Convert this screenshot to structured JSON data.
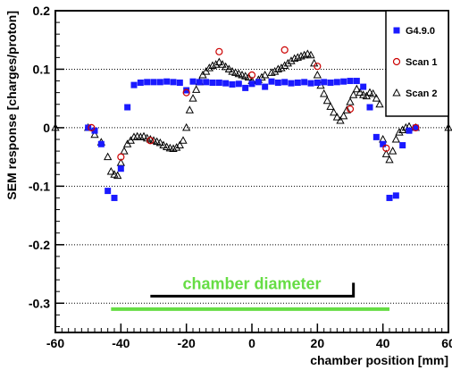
{
  "chart_data": {
    "type": "scatter",
    "xlabel": "chamber position [mm]",
    "ylabel": "SEM response [charges/proton]",
    "xlim": [
      -60,
      60
    ],
    "ylim": [
      -0.35,
      0.2
    ],
    "x_ticks": [
      -60,
      -40,
      -20,
      0,
      20,
      40,
      60
    ],
    "y_ticks": [
      -0.3,
      -0.2,
      -0.1,
      0,
      0.1,
      0.2
    ],
    "y_tick_labels": [
      "-0.3",
      "-0.2",
      "-0.1",
      "0",
      "0.1",
      "0.2"
    ],
    "grid": "dotted horizontal lines",
    "legend_position": "top-right",
    "series": [
      {
        "name": "G4.9.0",
        "marker": "filled-square",
        "color": "#1a1aff",
        "points": [
          [
            -50,
            0.0
          ],
          [
            -48,
            -0.005
          ],
          [
            -46,
            -0.028
          ],
          [
            -44,
            -0.108
          ],
          [
            -42,
            -0.12
          ],
          [
            -40,
            -0.07
          ],
          [
            -38,
            0.035
          ],
          [
            -36,
            0.073
          ],
          [
            -34,
            0.077
          ],
          [
            -32,
            0.078
          ],
          [
            -30,
            0.078
          ],
          [
            -28,
            0.078
          ],
          [
            -26,
            0.079
          ],
          [
            -24,
            0.078
          ],
          [
            -22,
            0.077
          ],
          [
            -20,
            0.064
          ],
          [
            -18,
            0.079
          ],
          [
            -16,
            0.078
          ],
          [
            -14,
            0.078
          ],
          [
            -12,
            0.077
          ],
          [
            -10,
            0.077
          ],
          [
            -8,
            0.076
          ],
          [
            -6,
            0.074
          ],
          [
            -4,
            0.075
          ],
          [
            -2,
            0.068
          ],
          [
            0,
            0.075
          ],
          [
            2,
            0.078
          ],
          [
            4,
            0.07
          ],
          [
            6,
            0.079
          ],
          [
            8,
            0.077
          ],
          [
            10,
            0.078
          ],
          [
            12,
            0.076
          ],
          [
            14,
            0.077
          ],
          [
            16,
            0.078
          ],
          [
            18,
            0.076
          ],
          [
            20,
            0.077
          ],
          [
            22,
            0.078
          ],
          [
            24,
            0.077
          ],
          [
            26,
            0.078
          ],
          [
            28,
            0.079
          ],
          [
            30,
            0.08
          ],
          [
            32,
            0.08
          ],
          [
            34,
            0.07
          ],
          [
            36,
            0.035
          ],
          [
            38,
            -0.016
          ],
          [
            40,
            -0.028
          ],
          [
            42,
            -0.12
          ],
          [
            44,
            -0.116
          ],
          [
            46,
            -0.03
          ],
          [
            48,
            -0.005
          ],
          [
            50,
            0.0
          ]
        ]
      },
      {
        "name": "Scan 1",
        "marker": "open-circle",
        "color": "#cc0000",
        "points": [
          [
            -49,
            0.0
          ],
          [
            -40,
            -0.05
          ],
          [
            -31,
            -0.022
          ],
          [
            -20,
            0.06
          ],
          [
            -10,
            0.13
          ],
          [
            0,
            0.09
          ],
          [
            10,
            0.133
          ],
          [
            20,
            0.105
          ],
          [
            30,
            0.032
          ],
          [
            41,
            -0.035
          ],
          [
            50,
            0.0
          ]
        ]
      },
      {
        "name": "Scan 2",
        "marker": "open-triangle",
        "color": "#000000",
        "points": [
          [
            -60,
            0.0
          ],
          [
            -50,
            0.0
          ],
          [
            -48,
            -0.012
          ],
          [
            -46,
            -0.025
          ],
          [
            -44,
            -0.05
          ],
          [
            -43,
            -0.075
          ],
          [
            -42,
            -0.08
          ],
          [
            -41,
            -0.082
          ],
          [
            -40,
            -0.06
          ],
          [
            -39,
            -0.04
          ],
          [
            -38,
            -0.028
          ],
          [
            -37,
            -0.022
          ],
          [
            -36,
            -0.016
          ],
          [
            -35,
            -0.015
          ],
          [
            -34,
            -0.016
          ],
          [
            -33,
            -0.015
          ],
          [
            -32,
            -0.018
          ],
          [
            -31,
            -0.02
          ],
          [
            -30,
            -0.022
          ],
          [
            -29,
            -0.024
          ],
          [
            -28,
            -0.026
          ],
          [
            -27,
            -0.03
          ],
          [
            -26,
            -0.033
          ],
          [
            -25,
            -0.035
          ],
          [
            -24,
            -0.036
          ],
          [
            -23,
            -0.034
          ],
          [
            -22,
            -0.03
          ],
          [
            -21,
            -0.022
          ],
          [
            -20,
            0.0
          ],
          [
            -19,
            0.03
          ],
          [
            -18,
            0.05
          ],
          [
            -17,
            0.065
          ],
          [
            -16,
            0.078
          ],
          [
            -15,
            0.09
          ],
          [
            -14,
            0.096
          ],
          [
            -13,
            0.102
          ],
          [
            -12,
            0.106
          ],
          [
            -11,
            0.108
          ],
          [
            -10,
            0.112
          ],
          [
            -9,
            0.108
          ],
          [
            -8,
            0.104
          ],
          [
            -7,
            0.1
          ],
          [
            -6,
            0.096
          ],
          [
            -5,
            0.094
          ],
          [
            -4,
            0.092
          ],
          [
            -3,
            0.09
          ],
          [
            -2,
            0.088
          ],
          [
            -1,
            0.086
          ],
          [
            0,
            0.08
          ],
          [
            2,
            0.082
          ],
          [
            3,
            0.086
          ],
          [
            4,
            0.09
          ],
          [
            6,
            0.094
          ],
          [
            7,
            0.096
          ],
          [
            8,
            0.1
          ],
          [
            9,
            0.102
          ],
          [
            10,
            0.106
          ],
          [
            11,
            0.11
          ],
          [
            12,
            0.114
          ],
          [
            13,
            0.118
          ],
          [
            14,
            0.12
          ],
          [
            15,
            0.122
          ],
          [
            16,
            0.124
          ],
          [
            17,
            0.126
          ],
          [
            18,
            0.124
          ],
          [
            19,
            0.11
          ],
          [
            20,
            0.09
          ],
          [
            21,
            0.072
          ],
          [
            22,
            0.058
          ],
          [
            23,
            0.046
          ],
          [
            24,
            0.036
          ],
          [
            25,
            0.026
          ],
          [
            26,
            0.018
          ],
          [
            27,
            0.012
          ],
          [
            28,
            0.02
          ],
          [
            29,
            0.03
          ],
          [
            30,
            0.044
          ],
          [
            31,
            0.056
          ],
          [
            32,
            0.066
          ],
          [
            33,
            0.06
          ],
          [
            34,
            0.056
          ],
          [
            35,
            0.054
          ],
          [
            36,
            0.06
          ],
          [
            37,
            0.058
          ],
          [
            38,
            0.05
          ],
          [
            39,
            0.04
          ],
          [
            40,
            -0.02
          ],
          [
            41,
            -0.045
          ],
          [
            42,
            -0.055
          ],
          [
            43,
            -0.04
          ],
          [
            44,
            -0.02
          ],
          [
            45,
            -0.008
          ],
          [
            46,
            -0.004
          ],
          [
            47,
            0.0
          ],
          [
            48,
            0.002
          ],
          [
            50,
            0.0
          ],
          [
            60,
            0.0
          ]
        ]
      }
    ],
    "annotations": {
      "label": "chamber diameter",
      "green_bar": [
        -43,
        42,
        -0.31
      ],
      "black_bracket": [
        -31,
        31,
        -0.288,
        -0.265
      ]
    }
  }
}
